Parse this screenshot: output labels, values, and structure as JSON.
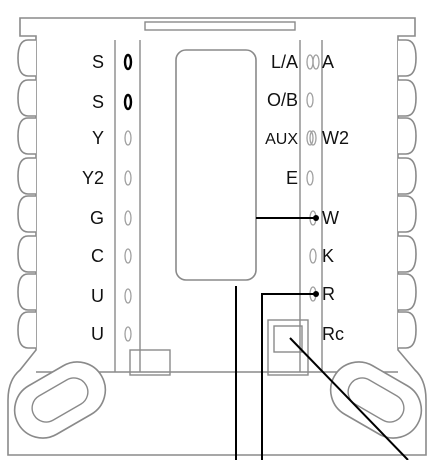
{
  "left_terminals": [
    {
      "label": "S",
      "active": true
    },
    {
      "label": "S",
      "active": true
    },
    {
      "label": "Y",
      "active": false
    },
    {
      "label": "Y2",
      "active": false
    },
    {
      "label": "G",
      "active": false
    },
    {
      "label": "C",
      "active": false
    },
    {
      "label": "U",
      "active": false
    },
    {
      "label": "U",
      "active": false
    }
  ],
  "right_terminals": [
    {
      "label": "L/A",
      "side": "left"
    },
    {
      "label": "A",
      "side": "right"
    },
    {
      "label": "O/B",
      "side": "left"
    },
    {
      "label": "AUX",
      "side": "left"
    },
    {
      "label": "W2",
      "side": "right"
    },
    {
      "label": "E",
      "side": "left"
    },
    {
      "label": "W",
      "side": "right"
    },
    {
      "label": "K",
      "side": "right"
    },
    {
      "label": "R",
      "side": "right"
    },
    {
      "label": "Rc",
      "side": "right"
    }
  ],
  "colors": {
    "outline": "#8a8a8a",
    "wire": "#000000",
    "terminal": "#a0a0a0"
  }
}
